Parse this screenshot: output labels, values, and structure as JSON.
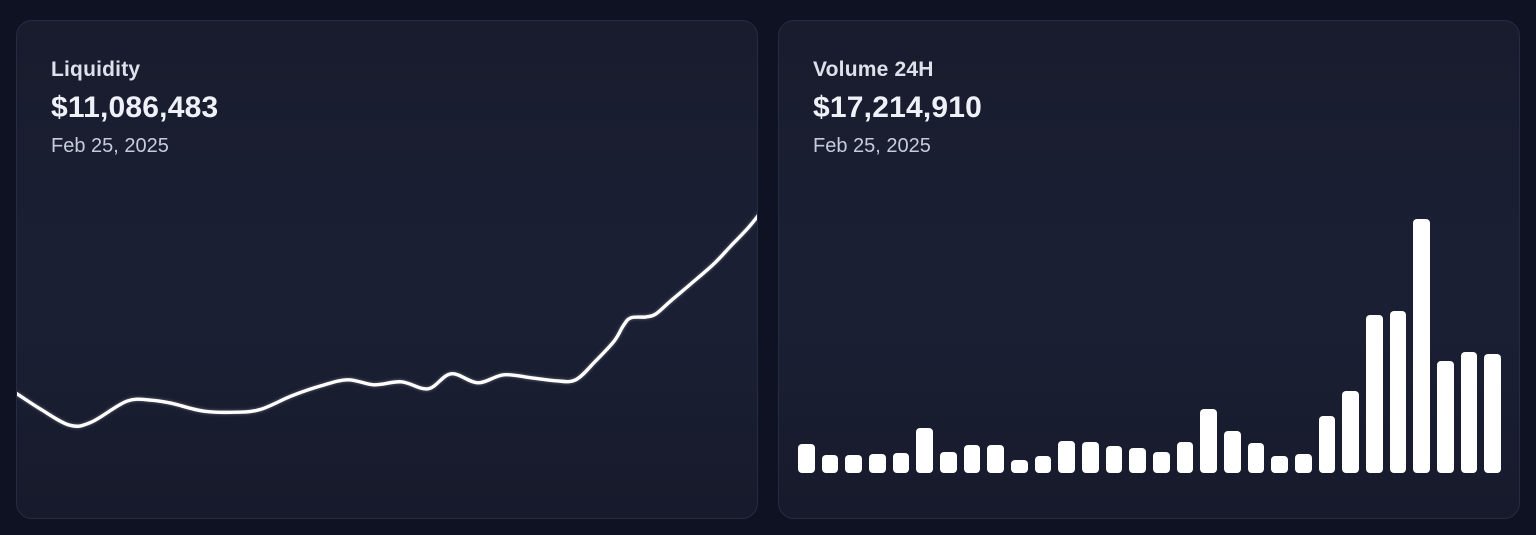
{
  "cards": [
    {
      "title": "Liquidity",
      "value": "$11,086,483",
      "date": "Feb 25, 2025"
    },
    {
      "title": "Volume 24H",
      "value": "$17,214,910",
      "date": "Feb 25, 2025"
    }
  ],
  "theme": {
    "background": "#0e1222",
    "card_background": "#191d30",
    "card_border": "#262b42",
    "chart_color": "#ffffff"
  },
  "chart_data": [
    {
      "type": "line",
      "title": "Liquidity",
      "current_value_label": "$11,086,483",
      "as_of_date": "Feb 25, 2025",
      "line_color": "#ffffff",
      "gridlines": false,
      "legend": false,
      "axis_labels": "none (sparkline style, trend dips early, stays flat mid-range, then rises steeply to a peak at the right edge)",
      "points_pct": [
        [
          0,
          74.7
        ],
        [
          3.2,
          77.8
        ],
        [
          7.1,
          81.0
        ],
        [
          10.0,
          80.4
        ],
        [
          14.8,
          76.2
        ],
        [
          18.1,
          76.0
        ],
        [
          20.8,
          76.6
        ],
        [
          25.2,
          78.2
        ],
        [
          29.6,
          78.4
        ],
        [
          32.9,
          77.8
        ],
        [
          36.9,
          75.2
        ],
        [
          41.0,
          73.1
        ],
        [
          44.6,
          71.9
        ],
        [
          48.1,
          72.9
        ],
        [
          51.8,
          72.3
        ],
        [
          55.4,
          73.7
        ],
        [
          58.5,
          70.7
        ],
        [
          62.1,
          72.5
        ],
        [
          65.6,
          70.9
        ],
        [
          69.3,
          71.5
        ],
        [
          72.6,
          72.1
        ],
        [
          75.3,
          71.9
        ],
        [
          78.0,
          68.1
        ],
        [
          80.5,
          64.1
        ],
        [
          81.7,
          61.1
        ],
        [
          82.7,
          59.5
        ],
        [
          84.8,
          59.3
        ],
        [
          86.1,
          58.7
        ],
        [
          88.1,
          56.1
        ],
        [
          90.8,
          52.7
        ],
        [
          93.9,
          48.7
        ],
        [
          96.2,
          45.1
        ],
        [
          98.5,
          41.5
        ],
        [
          100,
          38.8
        ]
      ]
    },
    {
      "type": "bar",
      "title": "Volume 24H",
      "current_value_label": "$17,214,910",
      "as_of_date": "Feb 25, 2025",
      "bar_color": "#ffffff",
      "gridlines": false,
      "legend": false,
      "axis_labels": "none (30 daily volume bars, low activity early, spike near the right with tallest bar third from right group)",
      "values_pct_of_max": [
        11.4,
        7.1,
        7.1,
        7.5,
        7.9,
        17.7,
        8.3,
        11.0,
        11.0,
        5.1,
        6.7,
        12.6,
        12.2,
        10.6,
        9.8,
        8.3,
        12.2,
        25.2,
        16.5,
        11.8,
        6.7,
        7.5,
        22.4,
        32.3,
        62.2,
        63.8,
        100,
        44.1,
        47.6,
        46.9
      ]
    }
  ]
}
